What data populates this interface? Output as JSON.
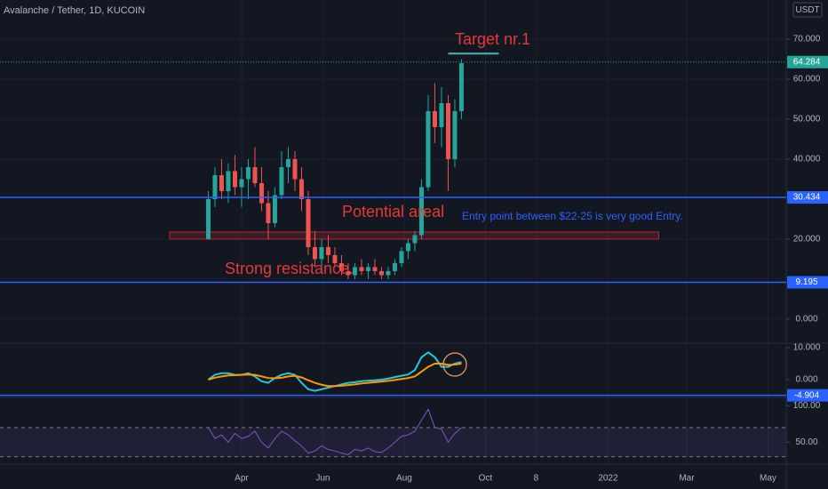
{
  "chart_data": [
    {
      "type": "candlestick",
      "title": "Avalanche / Tether, 1D, KUCOIN",
      "currency": "USDT",
      "x": [
        65,
        70,
        75,
        80,
        85,
        90,
        95,
        100,
        105,
        110,
        115,
        120,
        125,
        130,
        135,
        140,
        145,
        150,
        155,
        160,
        165,
        170,
        175,
        180,
        185,
        190,
        195,
        200,
        205,
        210,
        215,
        220,
        225,
        230,
        235,
        240,
        245,
        250,
        255
      ],
      "open": [
        20,
        30,
        36,
        32,
        37,
        33,
        35,
        38,
        34,
        29,
        24,
        31,
        38,
        40,
        35,
        30,
        18,
        15,
        18,
        16,
        14,
        12,
        11,
        13,
        12,
        13,
        12,
        11,
        12,
        14,
        17,
        19,
        21,
        33,
        52,
        48,
        54,
        40,
        52
      ],
      "high": [
        32,
        38,
        40,
        39,
        41,
        38,
        40,
        43,
        38,
        32,
        33,
        42,
        43,
        42,
        38,
        32,
        22,
        20,
        21,
        18,
        16,
        14,
        14,
        15,
        14,
        15,
        13,
        13,
        15,
        18,
        20,
        22,
        35,
        56,
        59,
        58,
        56,
        55,
        65
      ],
      "low": [
        20,
        28,
        30,
        29,
        31,
        28,
        30,
        33,
        27,
        20,
        23,
        30,
        34,
        32,
        27,
        16,
        13,
        13,
        14,
        13,
        11,
        10,
        10,
        11,
        10,
        11,
        10,
        10,
        11,
        13,
        15,
        17,
        20,
        32,
        44,
        43,
        32,
        38,
        50
      ],
      "close": [
        30,
        36,
        32,
        37,
        33,
        35,
        38,
        34,
        29,
        24,
        31,
        38,
        40,
        35,
        30,
        18,
        15,
        18,
        16,
        14,
        12,
        11,
        13,
        12,
        13,
        12,
        11,
        12,
        14,
        17,
        19,
        21,
        33,
        52,
        48,
        54,
        40,
        52,
        64
      ],
      "up_color": "#26a69a",
      "down_color": "#ef5350",
      "last_price": 64.284,
      "hlines": [
        30.434,
        9.195
      ],
      "hline_color": "#2962ff",
      "zone": {
        "y": [
          20,
          21.8
        ],
        "x": [
          36,
          403
        ],
        "color": "#b22833"
      },
      "target_line": {
        "value": 66.4,
        "x": [
          245,
          283
        ],
        "color": "#4db6ac"
      },
      "annotations": [
        "Target nr.1",
        "Potential areal",
        "Entry point between $22-25 is very good Entry.",
        "Strong resistance."
      ],
      "ylim": [
        -5.8,
        79.8
      ],
      "yticks": [
        {
          "value": 0,
          "label": "0.000"
        },
        {
          "value": 20,
          "label": "20.000"
        },
        {
          "value": 40,
          "label": "40.000"
        },
        {
          "value": 50,
          "label": "50.000"
        },
        {
          "value": 60,
          "label": "60.000"
        },
        {
          "value": 70,
          "label": "70.000"
        }
      ],
      "xlim": [
        -91.3,
        498.7
      ],
      "xticks": [
        {
          "value": 90,
          "label": "Apr"
        },
        {
          "value": 151,
          "label": "Jun"
        },
        {
          "value": 212,
          "label": "Aug"
        },
        {
          "value": 273,
          "label": "Oct"
        },
        {
          "value": 311,
          "label": "8"
        },
        {
          "value": 365,
          "label": "2022"
        },
        {
          "value": 424,
          "label": "Mar"
        },
        {
          "value": 485,
          "label": "May"
        }
      ],
      "grid": true
    },
    {
      "type": "line",
      "series": [
        {
          "color": "#26c6da",
          "values": [
            0,
            1.5,
            2,
            2,
            1.5,
            1.5,
            2,
            1,
            -0.5,
            -1,
            0.5,
            1.5,
            2,
            1.5,
            -1,
            -3,
            -3.5,
            -3,
            -2.5,
            -2,
            -1.5,
            -1,
            -0.8,
            -0.5,
            -0.3,
            -0.2,
            0,
            0.3,
            0.8,
            1.2,
            1.6,
            3,
            7,
            8.5,
            7,
            4,
            4,
            5,
            5.5
          ]
        },
        {
          "color": "#ff9800",
          "values": [
            0,
            0.6,
            1,
            1.3,
            1.4,
            1.5,
            1.6,
            1.5,
            1,
            0.5,
            0.4,
            0.6,
            1,
            1.2,
            0.7,
            -0.2,
            -1,
            -1.6,
            -2,
            -2,
            -1.9,
            -1.7,
            -1.5,
            -1.2,
            -1,
            -0.8,
            -0.6,
            -0.4,
            -0.1,
            0.2,
            0.5,
            1,
            2.5,
            4,
            5,
            5,
            4.6,
            4.7,
            5
          ]
        }
      ],
      "hline": -4.904,
      "ylim": [
        -5,
        11.1
      ],
      "yticks": [
        {
          "value": 0,
          "label": "0.000"
        },
        {
          "value": 10,
          "label": "10.000"
        }
      ]
    },
    {
      "type": "line",
      "color": "#7e57c2",
      "values": [
        70,
        55,
        60,
        50,
        62,
        55,
        58,
        65,
        50,
        42,
        55,
        65,
        60,
        52,
        45,
        35,
        38,
        45,
        40,
        38,
        35,
        33,
        40,
        38,
        42,
        37,
        36,
        42,
        50,
        58,
        60,
        65,
        80,
        95,
        70,
        68,
        50,
        62,
        70
      ],
      "band": [
        30,
        70
      ],
      "ylim": [
        20,
        110
      ],
      "yticks": [
        {
          "value": 50,
          "label": "50.00"
        },
        {
          "value": 100,
          "label": "100.00"
        }
      ]
    }
  ]
}
